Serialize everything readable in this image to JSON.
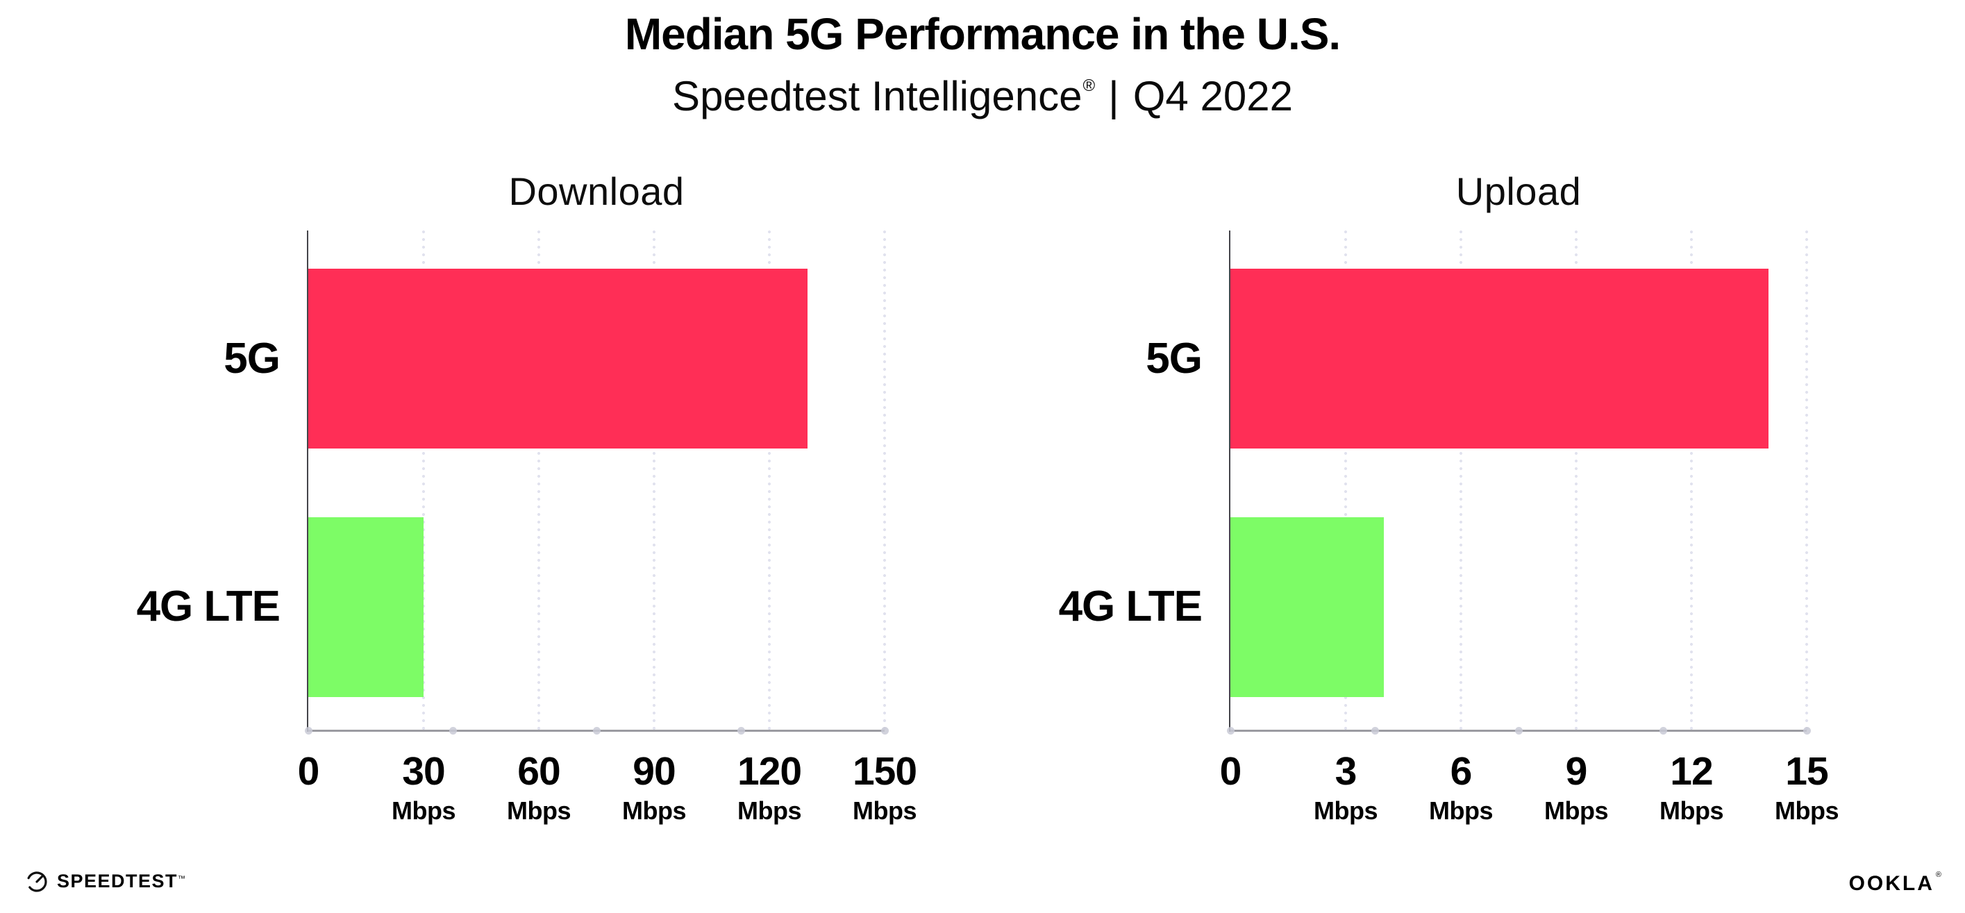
{
  "header": {
    "title": "Median 5G Performance in the U.S.",
    "subtitle": {
      "brand": "Speedtest Intelligence",
      "registered": "®",
      "separator": "|",
      "period": "Q4 2022"
    }
  },
  "colors": {
    "bar_5g": "#FF2E56",
    "bar_4g_lte": "#7DFC66",
    "gridline_dots": "#E1E2EE",
    "x_axis_line": "#9B9BA1",
    "y_axis_line": "#44444A",
    "axis_dots": "#C9CAD6",
    "text": "#000000"
  },
  "chart_data": [
    {
      "type": "bar",
      "orientation": "horizontal",
      "title": "Download",
      "unit": "Mbps",
      "categories": [
        "5G",
        "4G LTE"
      ],
      "values": [
        130,
        30
      ],
      "xlim": [
        0,
        150
      ],
      "xticks": [
        0,
        30,
        60,
        90,
        120,
        150
      ],
      "grid": "vertical-dotted",
      "legend": "none",
      "bar_colors": [
        "#FF2E56",
        "#7DFC66"
      ]
    },
    {
      "type": "bar",
      "orientation": "horizontal",
      "title": "Upload",
      "unit": "Mbps",
      "categories": [
        "5G",
        "4G LTE"
      ],
      "values": [
        14,
        4
      ],
      "xlim": [
        0,
        15
      ],
      "xticks": [
        0,
        3,
        6,
        9,
        12,
        15
      ],
      "grid": "vertical-dotted",
      "legend": "none",
      "bar_colors": [
        "#FF2E56",
        "#7DFC66"
      ]
    }
  ],
  "footer": {
    "speedtest": {
      "label": "SPEEDTEST",
      "trademark": "™"
    },
    "ookla": {
      "label": "OOKLA",
      "registered": "®"
    }
  }
}
